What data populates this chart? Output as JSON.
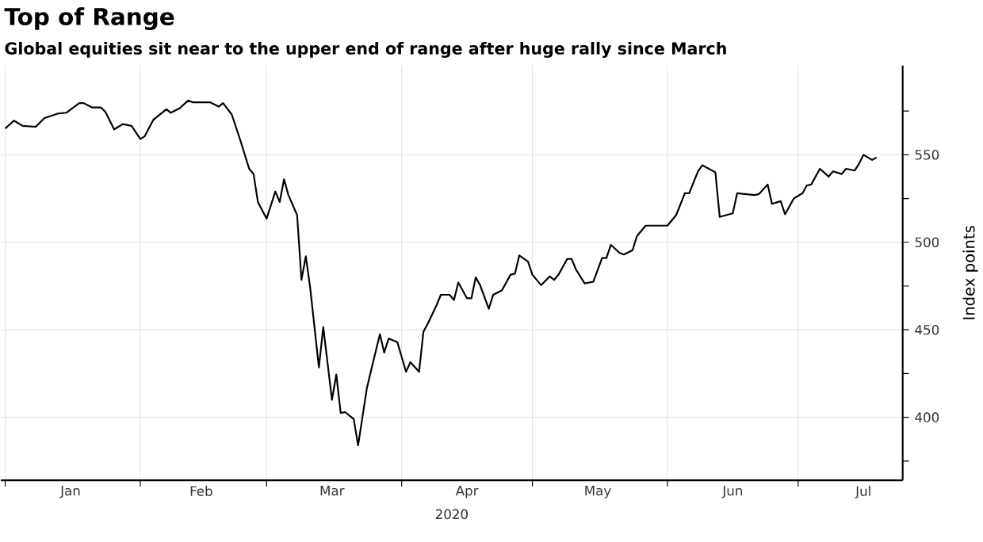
{
  "chart_data": {
    "type": "line",
    "title": "Top of Range",
    "subtitle": "Global equities sit near to the upper end of range after huge rally since March",
    "xlabel": "2020",
    "ylabel": "Index points",
    "x": [
      "2020-01-01",
      "2020-01-03",
      "2020-01-05",
      "2020-01-08",
      "2020-01-10",
      "2020-01-13",
      "2020-01-15",
      "2020-01-18",
      "2020-01-19",
      "2020-01-21",
      "2020-01-23",
      "2020-01-24",
      "2020-01-26",
      "2020-01-28",
      "2020-01-30",
      "2020-02-01",
      "2020-02-02",
      "2020-02-04",
      "2020-02-07",
      "2020-02-08",
      "2020-02-10",
      "2020-02-12",
      "2020-02-13",
      "2020-02-17",
      "2020-02-19",
      "2020-02-20",
      "2020-02-22",
      "2020-02-24",
      "2020-02-26",
      "2020-02-27",
      "2020-02-28",
      "2020-03-01",
      "2020-03-03",
      "2020-03-04",
      "2020-03-05",
      "2020-03-06",
      "2020-03-08",
      "2020-03-09",
      "2020-03-10",
      "2020-03-11",
      "2020-03-13",
      "2020-03-14",
      "2020-03-16",
      "2020-03-17",
      "2020-03-18",
      "2020-03-19",
      "2020-03-21",
      "2020-03-22",
      "2020-03-24",
      "2020-03-25",
      "2020-03-27",
      "2020-03-28",
      "2020-03-29",
      "2020-03-31",
      "2020-04-02",
      "2020-04-03",
      "2020-04-05",
      "2020-04-06",
      "2020-04-07",
      "2020-04-09",
      "2020-04-10",
      "2020-04-12",
      "2020-04-13",
      "2020-04-14",
      "2020-04-16",
      "2020-04-17",
      "2020-04-18",
      "2020-04-19",
      "2020-04-21",
      "2020-04-22",
      "2020-04-24",
      "2020-04-26",
      "2020-04-27",
      "2020-04-28",
      "2020-04-30",
      "2020-05-01",
      "2020-05-03",
      "2020-05-05",
      "2020-05-06",
      "2020-05-07",
      "2020-05-09",
      "2020-05-10",
      "2020-05-11",
      "2020-05-13",
      "2020-05-15",
      "2020-05-17",
      "2020-05-18",
      "2020-05-19",
      "2020-05-21",
      "2020-05-22",
      "2020-05-24",
      "2020-05-25",
      "2020-05-27",
      "2020-06-01",
      "2020-06-03",
      "2020-06-05",
      "2020-06-06",
      "2020-06-08",
      "2020-06-09",
      "2020-06-12",
      "2020-06-13",
      "2020-06-16",
      "2020-06-17",
      "2020-06-21",
      "2020-06-22",
      "2020-06-24",
      "2020-06-25",
      "2020-06-27",
      "2020-06-28",
      "2020-06-30",
      "2020-07-02",
      "2020-07-03",
      "2020-07-04",
      "2020-07-06",
      "2020-07-08",
      "2020-07-09",
      "2020-07-11",
      "2020-07-12",
      "2020-07-14",
      "2020-07-15",
      "2020-07-16",
      "2020-07-18",
      "2020-07-19"
    ],
    "series": [
      {
        "color": "#000000",
        "values": [
          565,
          569.5,
          566.5,
          566,
          571,
          573.5,
          574,
          579.5,
          579.5,
          577,
          577,
          574.5,
          564.5,
          567.5,
          566.5,
          559,
          560.5,
          570,
          576,
          574,
          576.5,
          581,
          580,
          580,
          577.5,
          579.5,
          573,
          558,
          542,
          539,
          523,
          513.5,
          529,
          523,
          536,
          527,
          515.5,
          478.5,
          492,
          474,
          428.5,
          451.5,
          410,
          424.5,
          402.5,
          403,
          399,
          384,
          416.5,
          427,
          447.5,
          437,
          445,
          443,
          426,
          431.5,
          426,
          449,
          453.5,
          464,
          470,
          470,
          467,
          477,
          468,
          468,
          480,
          475.5,
          462,
          470,
          472.5,
          481.5,
          482,
          492.5,
          489,
          481.5,
          475.5,
          480.5,
          478.5,
          481.5,
          490.5,
          490.5,
          484.5,
          476.5,
          477.5,
          491,
          491,
          498.5,
          494,
          493,
          495.5,
          503.5,
          509.5,
          509.5,
          515.5,
          528,
          528,
          540.5,
          544,
          540,
          514.5,
          516.5,
          528,
          527,
          527.5,
          533,
          522,
          523.5,
          516,
          525,
          528,
          532.5,
          533,
          542,
          537.5,
          540.5,
          539,
          542,
          541,
          545,
          550,
          547,
          548.5
        ]
      }
    ],
    "xlim": [
      "2019-12-31",
      "2020-07-25"
    ],
    "xticks": [
      {
        "value": "2020-01-01",
        "label": null
      },
      {
        "value": "2020-01-16",
        "label": "Jan"
      },
      {
        "value": "2020-02-01",
        "label": null
      },
      {
        "value": "2020-02-15",
        "label": "Feb"
      },
      {
        "value": "2020-03-01",
        "label": null
      },
      {
        "value": "2020-03-16",
        "label": "Mar"
      },
      {
        "value": "2020-04-01",
        "label": null
      },
      {
        "value": "2020-04-16",
        "label": "Apr"
      },
      {
        "value": "2020-05-01",
        "label": null
      },
      {
        "value": "2020-05-16",
        "label": "May"
      },
      {
        "value": "2020-06-01",
        "label": null
      },
      {
        "value": "2020-06-16",
        "label": "Jun"
      },
      {
        "value": "2020-07-01",
        "label": null
      },
      {
        "value": "2020-07-16",
        "label": "Jul"
      }
    ],
    "ylim": [
      364,
      601
    ],
    "yticks": [
      {
        "value": 375,
        "label": null
      },
      400,
      {
        "value": 425,
        "label": null
      },
      450,
      {
        "value": 475,
        "label": null
      },
      500,
      {
        "value": 525,
        "label": null
      },
      550,
      {
        "value": 575,
        "label": null
      }
    ],
    "grid": true,
    "line_style": "solid",
    "marker": "none"
  }
}
